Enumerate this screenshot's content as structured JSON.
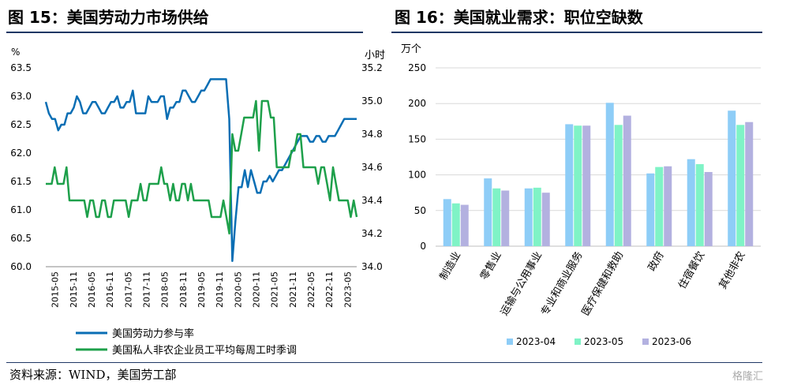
{
  "titles": {
    "left": "图 15：美国劳动力市场供给",
    "right": "图 16：美国就业需求：职位空缺数"
  },
  "source": "资料来源：WIND，美国劳工部",
  "watermark": "格隆汇",
  "chart_data": [
    {
      "type": "line",
      "left_unit": "%",
      "right_unit": "小时",
      "ylim_left": [
        60.0,
        63.5
      ],
      "ylim_right": [
        34.0,
        35.2
      ],
      "yticks_left": [
        "63.5",
        "63.0",
        "62.5",
        "62.0",
        "61.5",
        "61.0",
        "60.5",
        "60.0"
      ],
      "yticks_right": [
        "35.2",
        "35.0",
        "34.8",
        "34.6",
        "34.4",
        "34.2",
        "34.0"
      ],
      "x_tick_labels": [
        "2015-05",
        "2015-11",
        "2016-05",
        "2016-11",
        "2017-05",
        "2017-11",
        "2018-05",
        "2018-11",
        "2019-05",
        "2019-11",
        "2020-05",
        "2020-11",
        "2021-05",
        "2021-11",
        "2022-05",
        "2022-11",
        "2023-05"
      ],
      "legend_position": "bottom",
      "series": [
        {
          "name": "美国劳动力参与率",
          "axis": "left",
          "color": "#0a6eb4",
          "values": [
            62.9,
            62.7,
            62.6,
            62.6,
            62.4,
            62.5,
            62.5,
            62.7,
            62.7,
            62.8,
            63.0,
            62.9,
            62.7,
            62.7,
            62.8,
            62.9,
            62.9,
            62.8,
            62.7,
            62.7,
            62.8,
            62.9,
            62.9,
            63.0,
            62.8,
            62.8,
            62.9,
            62.9,
            63.1,
            62.7,
            62.7,
            62.7,
            62.7,
            63.0,
            62.9,
            62.9,
            62.9,
            63.0,
            63.0,
            62.6,
            62.8,
            62.8,
            62.9,
            62.9,
            63.1,
            63.1,
            63.0,
            62.9,
            62.9,
            63.0,
            63.1,
            63.1,
            63.2,
            63.3,
            63.3,
            63.3,
            63.3,
            63.3,
            63.3,
            62.6,
            60.1,
            60.8,
            61.4,
            61.4,
            61.7,
            61.4,
            61.7,
            61.5,
            61.3,
            61.3,
            61.5,
            61.5,
            61.6,
            61.5,
            61.6,
            61.7,
            61.7,
            61.8,
            61.9,
            62.0,
            62.1,
            62.2,
            62.3,
            62.3,
            62.3,
            62.2,
            62.2,
            62.3,
            62.3,
            62.2,
            62.2,
            62.3,
            62.3,
            62.3,
            62.4,
            62.5,
            62.6,
            62.6,
            62.6,
            62.6,
            62.6
          ]
        },
        {
          "name": "美国私人非农企业员工平均每周工时季调",
          "axis": "right",
          "color": "#1ea04b",
          "values": [
            34.5,
            34.5,
            34.5,
            34.6,
            34.5,
            34.5,
            34.5,
            34.6,
            34.4,
            34.4,
            34.4,
            34.4,
            34.4,
            34.4,
            34.3,
            34.4,
            34.4,
            34.3,
            34.3,
            34.4,
            34.4,
            34.3,
            34.3,
            34.4,
            34.4,
            34.4,
            34.4,
            34.4,
            34.3,
            34.4,
            34.4,
            34.4,
            34.5,
            34.4,
            34.4,
            34.5,
            34.5,
            34.5,
            34.5,
            34.6,
            34.5,
            34.5,
            34.4,
            34.5,
            34.4,
            34.4,
            34.5,
            34.5,
            34.4,
            34.5,
            34.4,
            34.4,
            34.4,
            34.4,
            34.4,
            34.4,
            34.3,
            34.3,
            34.3,
            34.3,
            34.4,
            34.3,
            34.2,
            34.8,
            34.7,
            34.7,
            34.8,
            34.9,
            34.9,
            34.9,
            34.9,
            35.0,
            34.7,
            35.0,
            35.0,
            35.0,
            34.9,
            34.9,
            34.6,
            34.6,
            34.6,
            34.6,
            34.6,
            34.7,
            34.7,
            34.8,
            34.8,
            34.6,
            34.6,
            34.6,
            34.6,
            34.6,
            34.5,
            34.6,
            34.6,
            34.5,
            34.4,
            34.6,
            34.5,
            34.4,
            34.4,
            34.4,
            34.4,
            34.3,
            34.4,
            34.3
          ]
        }
      ]
    },
    {
      "type": "bar",
      "y_unit": "万个",
      "ylim": [
        0,
        250
      ],
      "yticks": [
        "250",
        "200",
        "150",
        "100",
        "50",
        "0"
      ],
      "categories": [
        "制造业",
        "零售业",
        "运输与公用事业",
        "专业和商业服务",
        "医疗保健和救助",
        "政府",
        "住宿餐饮",
        "其他非农"
      ],
      "legend_position": "bottom",
      "series": [
        {
          "name": "2023-04",
          "color": "#8ecdf7",
          "values": [
            66,
            95,
            81,
            171,
            201,
            102,
            122,
            190
          ]
        },
        {
          "name": "2023-05",
          "color": "#7ff3c6",
          "values": [
            60,
            81,
            82,
            169,
            170,
            111,
            115,
            170
          ]
        },
        {
          "name": "2023-06",
          "color": "#b3b1e0",
          "values": [
            58,
            78,
            75,
            169,
            183,
            112,
            104,
            174
          ]
        }
      ]
    }
  ]
}
